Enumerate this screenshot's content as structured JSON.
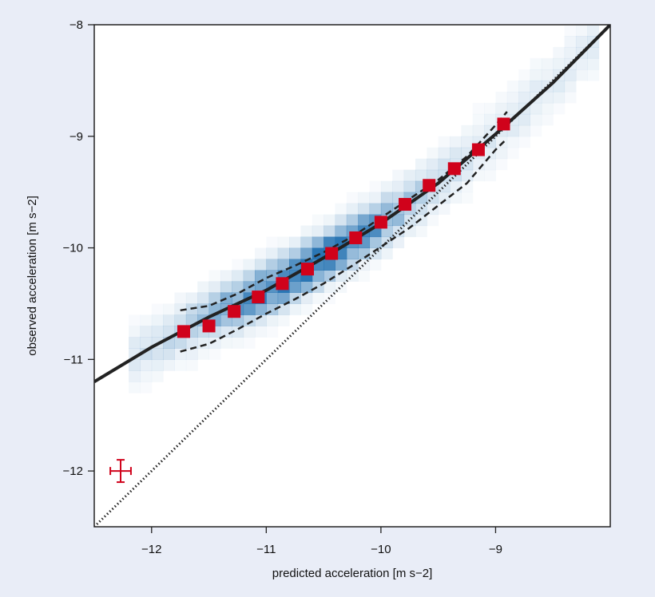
{
  "colors": {
    "page_background": "#e9edf7",
    "plot_background": "#ffffff",
    "density": "#1f6fb0",
    "marker": "#d0021b",
    "line": "#222222"
  },
  "chart_data": {
    "type": "scatter",
    "title": "",
    "xlabel": "predicted acceleration [m s−2]",
    "ylabel": "observed acceleration [m s−2]",
    "xlim": [
      -12.5,
      -8.0
    ],
    "ylim": [
      -12.5,
      -8.0
    ],
    "xticks": [
      -12,
      -11,
      -10,
      -9
    ],
    "yticks": [
      -12,
      -11,
      -10,
      -9,
      -8
    ],
    "xtick_labels": [
      "−12",
      "−11",
      "−10",
      "−9"
    ],
    "ytick_labels": [
      "−12",
      "−11",
      "−10",
      "−9",
      "−8"
    ],
    "grid": false,
    "binned_means": {
      "marker": "red square",
      "x": [
        -11.72,
        -11.5,
        -11.28,
        -11.07,
        -10.86,
        -10.64,
        -10.43,
        -10.22,
        -10.0,
        -9.79,
        -9.58,
        -9.36,
        -9.15,
        -8.93
      ],
      "y": [
        -10.75,
        -10.7,
        -10.57,
        -10.44,
        -10.32,
        -10.19,
        -10.05,
        -9.91,
        -9.77,
        -9.61,
        -9.44,
        -9.29,
        -9.12,
        -8.89
      ]
    },
    "fit_curve": {
      "style": "solid",
      "x": [
        -12.5,
        -12.0,
        -11.5,
        -11.0,
        -10.5,
        -10.0,
        -9.5,
        -9.0,
        -8.5,
        -8.0
      ],
      "y": [
        -11.2,
        -10.89,
        -10.62,
        -10.38,
        -10.09,
        -9.78,
        -9.42,
        -8.98,
        -8.52,
        -8.0
      ]
    },
    "scatter_band": {
      "style": "dashed",
      "x": [
        -11.75,
        -11.5,
        -11.25,
        -11.0,
        -10.75,
        -10.5,
        -10.25,
        -10.0,
        -9.75,
        -9.5,
        -9.25,
        -9.0,
        -8.9
      ],
      "upper": [
        -10.56,
        -10.52,
        -10.41,
        -10.27,
        -10.16,
        -10.04,
        -9.9,
        -9.73,
        -9.56,
        -9.39,
        -9.18,
        -8.9,
        -8.78
      ],
      "lower": [
        -10.93,
        -10.86,
        -10.73,
        -10.59,
        -10.46,
        -10.32,
        -10.16,
        -9.99,
        -9.82,
        -9.62,
        -9.42,
        -9.12,
        -9.02
      ]
    },
    "one_to_one_line": {
      "style": "dotted",
      "x": [
        -12.5,
        -8.0
      ],
      "y": [
        -12.5,
        -8.0
      ]
    },
    "error_bar": {
      "x": -12.27,
      "y": -12.0,
      "xerr": 0.09,
      "yerr": 0.1
    }
  }
}
